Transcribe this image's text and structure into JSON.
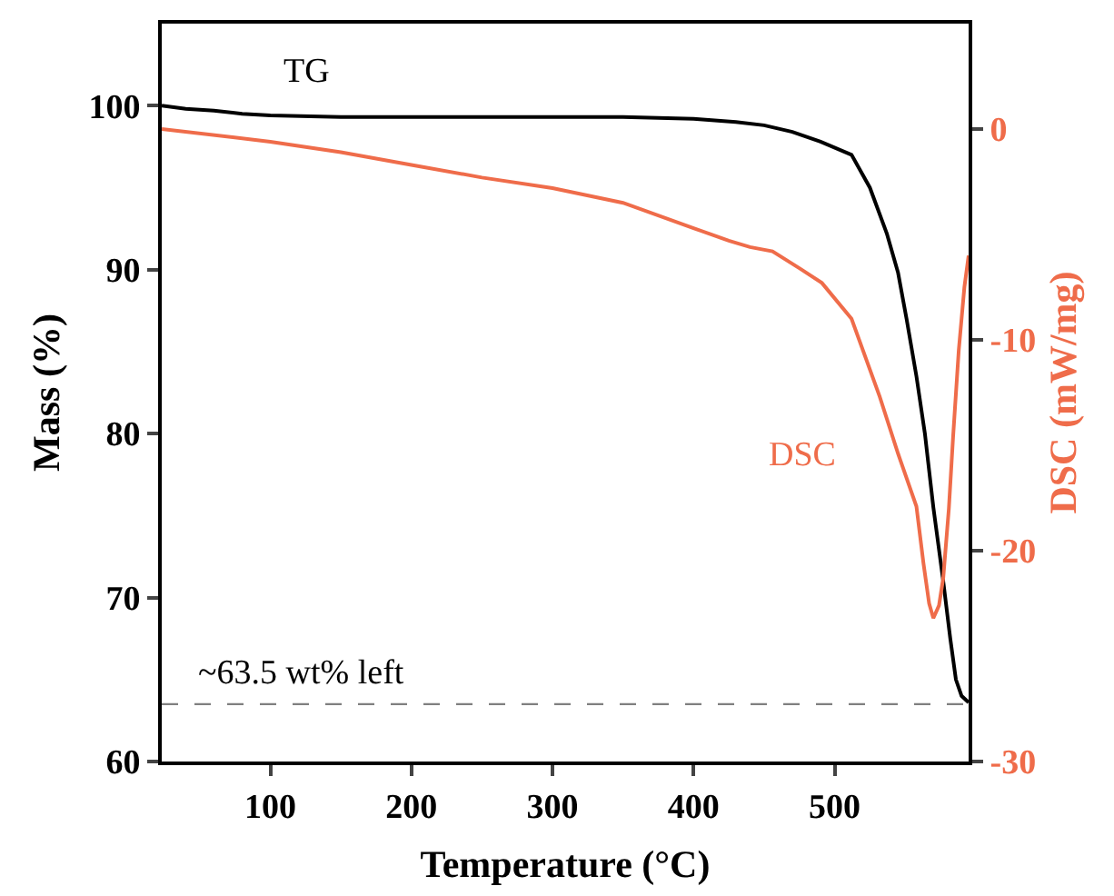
{
  "chart_data": {
    "type": "line",
    "xlabel": "Temperature (°C)",
    "ylabel": "Mass (%)",
    "y2label": "DSC (mW/mg)",
    "xlim": [
      23,
      595
    ],
    "xticks": [
      100,
      200,
      300,
      400,
      500
    ],
    "ylim": [
      60,
      105
    ],
    "yticks": [
      60,
      70,
      80,
      90,
      100
    ],
    "y2lim": [
      -30,
      5
    ],
    "y2ticks": [
      -30,
      -20,
      -10,
      0
    ],
    "grid": false,
    "legend": false,
    "line_style": "solid",
    "marker": "none",
    "series": [
      {
        "name": "TG",
        "color": "#000000",
        "x": [
          23,
          40,
          60,
          80,
          100,
          150,
          200,
          250,
          300,
          350,
          400,
          430,
          450,
          470,
          490,
          512,
          525,
          537,
          545,
          551,
          558,
          564,
          570,
          577,
          582,
          586,
          590,
          595
        ],
        "values": [
          100,
          99.8,
          99.7,
          99.5,
          99.4,
          99.3,
          99.3,
          99.3,
          99.3,
          99.3,
          99.2,
          99,
          98.8,
          98.4,
          97.8,
          97,
          95,
          92.2,
          89.8,
          87,
          83.5,
          80,
          75.5,
          71,
          67.5,
          65,
          64,
          63.6
        ]
      },
      {
        "name": "DSC",
        "color": "#ef6c4a",
        "axis": "y2",
        "x": [
          23,
          100,
          150,
          200,
          250,
          300,
          350,
          400,
          425,
          440,
          456,
          475,
          491,
          512,
          532,
          545,
          558,
          563,
          567,
          570,
          574,
          577,
          581,
          584,
          588,
          592,
          595
        ],
        "values": [
          0,
          -0.6,
          -1.1,
          -1.7,
          -2.3,
          -2.8,
          -3.5,
          -4.7,
          -5.3,
          -5.6,
          -5.8,
          -6.6,
          -7.3,
          -9,
          -12.7,
          -15.4,
          -17.9,
          -20.6,
          -22.5,
          -23.2,
          -22.6,
          -21.3,
          -18,
          -14.6,
          -10.5,
          -7.5,
          -6
        ]
      }
    ],
    "ref_lines": [
      {
        "axis": "y",
        "value": 63.5,
        "label": "~63.5 wt% left",
        "color": "#808080",
        "line_style": "dashed"
      }
    ]
  }
}
